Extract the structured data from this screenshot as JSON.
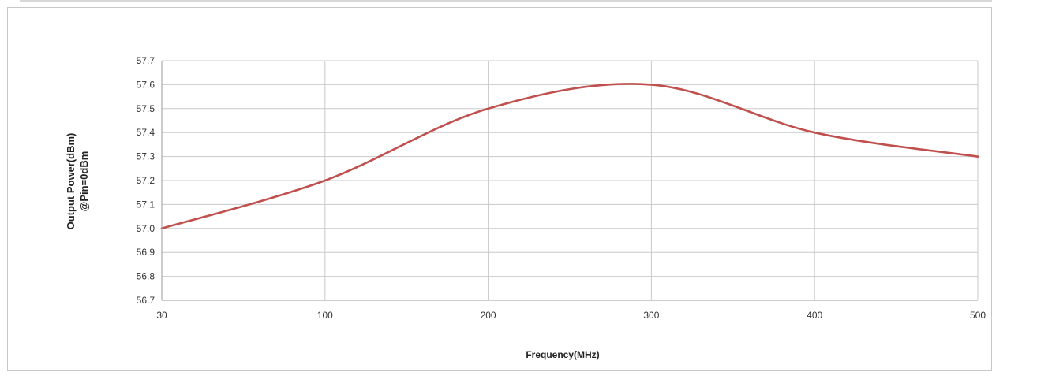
{
  "chart_data": {
    "type": "line",
    "title": "",
    "xlabel": "Frequency(MHz)",
    "ylabel_lines": [
      "Output Power(dBm)",
      "@Pin=0dBm"
    ],
    "categories": [
      "30",
      "100",
      "200",
      "300",
      "400",
      "500"
    ],
    "ylim": [
      56.7,
      57.7
    ],
    "y_ticks": [
      "56.7",
      "56.8",
      "56.9",
      "57.0",
      "57.1",
      "57.2",
      "57.3",
      "57.4",
      "57.5",
      "57.6",
      "57.7"
    ],
    "grid": true,
    "legend": "none",
    "series": [
      {
        "values": [
          57.0,
          57.2,
          57.5,
          57.6,
          57.4,
          57.3
        ],
        "color": "#c0504d"
      }
    ]
  }
}
